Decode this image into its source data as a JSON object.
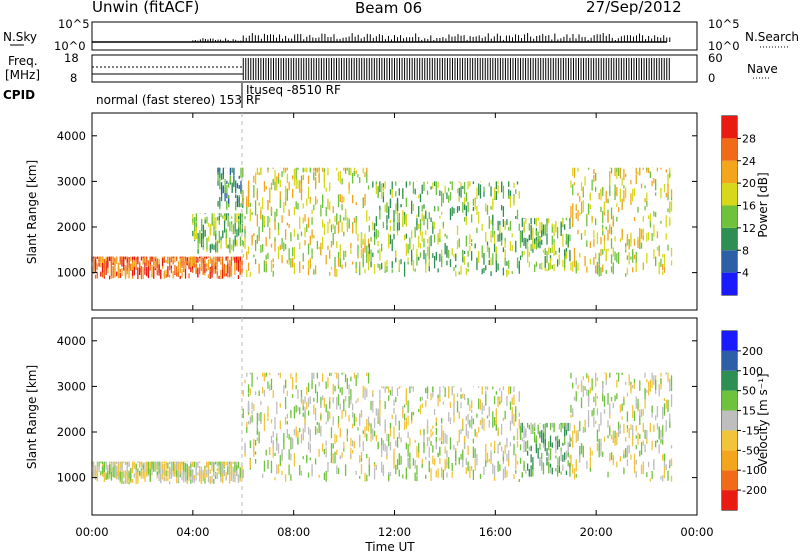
{
  "header": {
    "station": "Unwin (fitACF)",
    "beam": "Beam 06",
    "date": "27/Sep/2012"
  },
  "top_panels": {
    "nsky_label": "N.Sky",
    "nsky_ticks": [
      "10^5",
      "10^0"
    ],
    "nsearch_label": "N.Search",
    "nsearch_ticks": [
      "10^5",
      "10^0"
    ],
    "freq_label_line1": "Freq.",
    "freq_label_line2": "[MHz]",
    "freq_ticks": [
      "18",
      "8"
    ],
    "nave_label": "Nave",
    "nave_ticks": [
      "60",
      "0"
    ],
    "cpid_label": "CPID",
    "cpid_segments": [
      "normal (fast stereo) 153 RF",
      "Ituseq -8510 RF"
    ]
  },
  "chart_data": [
    {
      "type": "heatmap",
      "panel": "power",
      "ylabel": "Slant Range [km]",
      "yticks": [
        "1000",
        "2000",
        "3000",
        "4000"
      ],
      "ylim": [
        180,
        4500
      ],
      "xlim": [
        0,
        24
      ],
      "colorbar_label": "Power [dB]",
      "colorbar_ticks": [
        "4",
        "8",
        "12",
        "16",
        "20",
        "24",
        "28"
      ],
      "colors": [
        "#1a1aff",
        "#2d5fa6",
        "#2f8f52",
        "#6fc23c",
        "#d8d81a",
        "#f3a51b",
        "#f06a18",
        "#e81a12"
      ],
      "regions": [
        {
          "t0": 0.0,
          "t1": 6.0,
          "r0": 850,
          "r1": 1350,
          "level": 6
        },
        {
          "t0": 4.0,
          "t1": 6.0,
          "r0": 1400,
          "r1": 2300,
          "level": 3
        },
        {
          "t0": 5.0,
          "t1": 6.0,
          "r0": 2350,
          "r1": 3300,
          "level": 2
        },
        {
          "t0": 6.0,
          "t1": 11.0,
          "r0": 900,
          "r1": 3300,
          "level": 4
        },
        {
          "t0": 11.0,
          "t1": 17.0,
          "r0": 900,
          "r1": 3000,
          "level": 3
        },
        {
          "t0": 17.0,
          "t1": 19.0,
          "r0": 1000,
          "r1": 2200,
          "level": 3
        },
        {
          "t0": 19.0,
          "t1": 23.0,
          "r0": 900,
          "r1": 3300,
          "level": 4
        }
      ]
    },
    {
      "type": "heatmap",
      "panel": "velocity",
      "ylabel": "Slant Range [km]",
      "yticks": [
        "1000",
        "2000",
        "3000",
        "4000"
      ],
      "ylim": [
        180,
        4500
      ],
      "xlim": [
        0,
        24
      ],
      "xticks": [
        "00:00",
        "04:00",
        "08:00",
        "12:00",
        "16:00",
        "20:00",
        "00:00"
      ],
      "xlabel": "Time UT",
      "colorbar_label": "Velocity [m s⁻¹]",
      "colorbar_ticks": [
        "-200",
        "-100",
        "-50",
        "-15",
        "15",
        "50",
        "100",
        "200"
      ],
      "colors": [
        "#e81a12",
        "#f06a18",
        "#f3a51b",
        "#f2c43a",
        "#bebebe",
        "#6fc23c",
        "#2f8f52",
        "#2d5fa6",
        "#1a1aff"
      ],
      "regions": [
        {
          "t0": 0.0,
          "t1": 6.0,
          "r0": 850,
          "r1": 1350,
          "level": 4
        },
        {
          "t0": 6.0,
          "t1": 11.0,
          "r0": 900,
          "r1": 3300,
          "level": 4
        },
        {
          "t0": 11.0,
          "t1": 17.0,
          "r0": 900,
          "r1": 3000,
          "level": 4
        },
        {
          "t0": 17.0,
          "t1": 19.0,
          "r0": 1000,
          "r1": 2200,
          "level": 5
        },
        {
          "t0": 19.0,
          "t1": 23.0,
          "r0": 900,
          "r1": 3300,
          "level": 4
        }
      ]
    }
  ]
}
